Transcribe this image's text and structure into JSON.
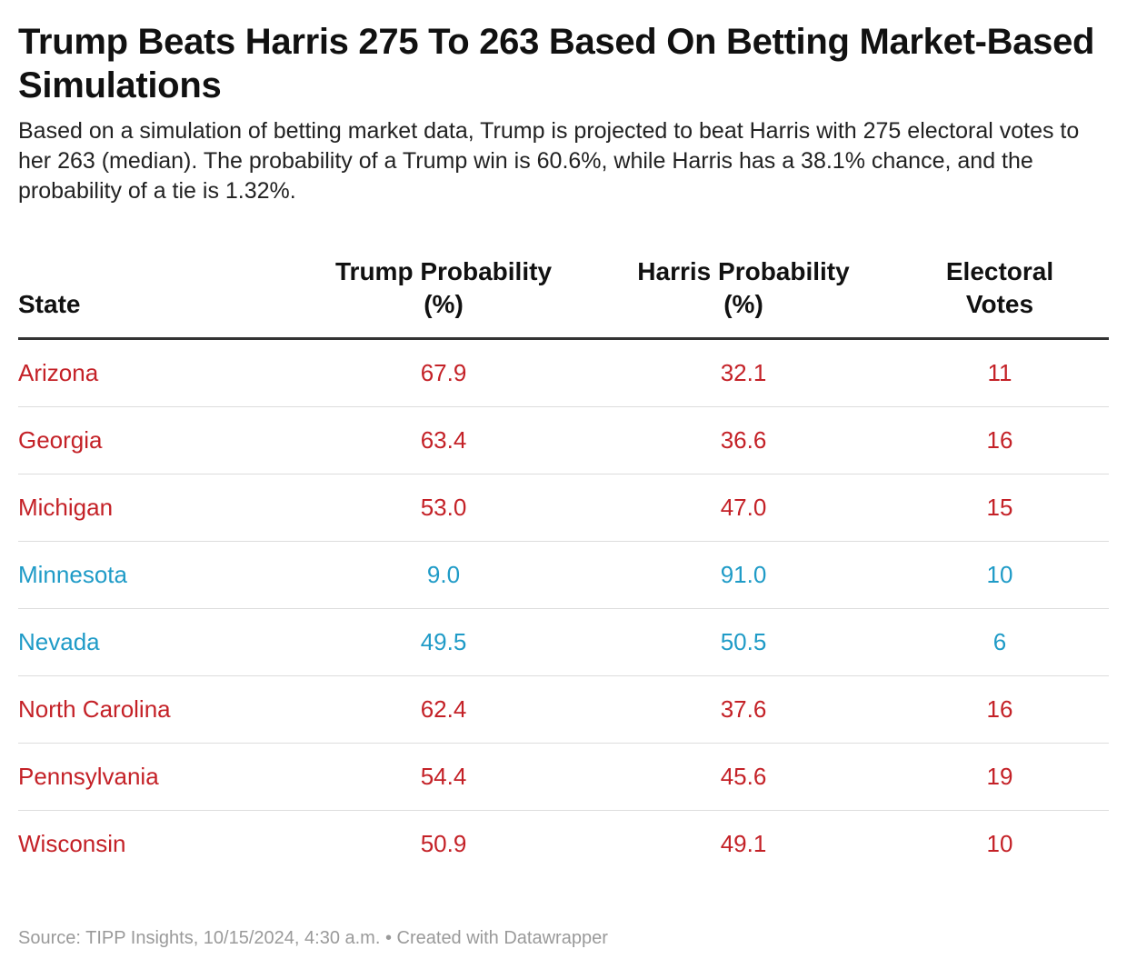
{
  "title": "Trump Beats Harris 275 To 263 Based On Betting Market-Based Simulations",
  "description": "Based on a simulation of betting market data, Trump is projected to beat Harris with 275 electoral votes to her 263 (median). The probability of a Trump win is 60.6%, while Harris has a 38.1% chance, and the probability of a tie is 1.32%.",
  "colors": {
    "trump_row": "#c42127",
    "harris_row": "#1f9bc7"
  },
  "footer": {
    "source": "Source: TIPP Insights, 10/15/2024, 4:30 a.m.",
    "separator": " • ",
    "credit": "Created with Datawrapper"
  },
  "chart_data": {
    "type": "table",
    "columns": [
      {
        "line1": "State",
        "line2": ""
      },
      {
        "line1": "Trump Probability",
        "line2": "(%)"
      },
      {
        "line1": "Harris Probability",
        "line2": "(%)"
      },
      {
        "line1": "Electoral",
        "line2": "Votes"
      }
    ],
    "rows": [
      {
        "state": "Arizona",
        "trump": "67.9",
        "harris": "32.1",
        "votes": "11",
        "color": "#c42127"
      },
      {
        "state": "Georgia",
        "trump": "63.4",
        "harris": "36.6",
        "votes": "16",
        "color": "#c42127"
      },
      {
        "state": "Michigan",
        "trump": "53.0",
        "harris": "47.0",
        "votes": "15",
        "color": "#c42127"
      },
      {
        "state": "Minnesota",
        "trump": "9.0",
        "harris": "91.0",
        "votes": "10",
        "color": "#1f9bc7"
      },
      {
        "state": "Nevada",
        "trump": "49.5",
        "harris": "50.5",
        "votes": "6",
        "color": "#1f9bc7"
      },
      {
        "state": "North Carolina",
        "trump": "62.4",
        "harris": "37.6",
        "votes": "16",
        "color": "#c42127"
      },
      {
        "state": "Pennsylvania",
        "trump": "54.4",
        "harris": "45.6",
        "votes": "19",
        "color": "#c42127"
      },
      {
        "state": "Wisconsin",
        "trump": "50.9",
        "harris": "49.1",
        "votes": "10",
        "color": "#c42127"
      }
    ]
  }
}
